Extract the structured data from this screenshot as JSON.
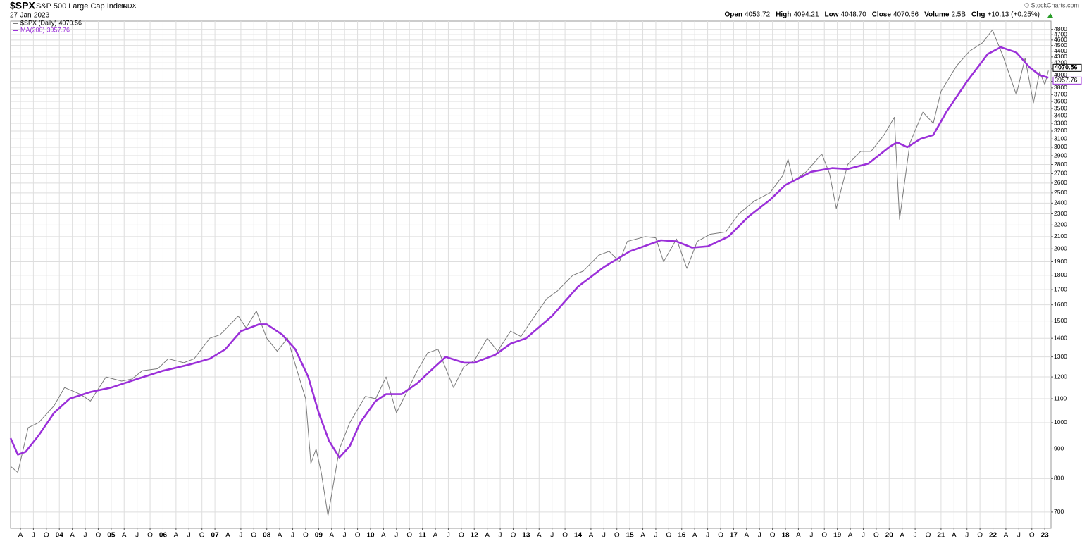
{
  "chart_data": {
    "type": "line",
    "symbol": "$SPX",
    "title": "S&P 500 Large Cap Index",
    "exchange": "INDX",
    "date": "27-Jan-2023",
    "quote": [
      {
        "label": "Open",
        "value": "4053.72"
      },
      {
        "label": "High",
        "value": "4094.21"
      },
      {
        "label": "Low",
        "value": "4048.70"
      },
      {
        "label": "Close",
        "value": "4070.56"
      },
      {
        "label": "Volume",
        "value": "2.5B"
      },
      {
        "label": "Chg",
        "value": "+10.13 (+0.25%)"
      }
    ],
    "watermark": "© StockCharts.com",
    "log_scale": true,
    "grid": true,
    "xlim": [
      2003.06,
      2023.12
    ],
    "ylim": [
      656,
      4960
    ],
    "xticks": [
      {
        "value": 2003.25,
        "label": "A"
      },
      {
        "value": 2003.5,
        "label": "J"
      },
      {
        "value": 2003.75,
        "label": "O"
      },
      {
        "value": 2004,
        "label": "04"
      },
      {
        "value": 2004.25,
        "label": "A"
      },
      {
        "value": 2004.5,
        "label": "J"
      },
      {
        "value": 2004.75,
        "label": "O"
      },
      {
        "value": 2005,
        "label": "05"
      },
      {
        "value": 2005.25,
        "label": "A"
      },
      {
        "value": 2005.5,
        "label": "J"
      },
      {
        "value": 2005.75,
        "label": "O"
      },
      {
        "value": 2006,
        "label": "06"
      },
      {
        "value": 2006.25,
        "label": "A"
      },
      {
        "value": 2006.5,
        "label": "J"
      },
      {
        "value": 2006.75,
        "label": "O"
      },
      {
        "value": 2007,
        "label": "07"
      },
      {
        "value": 2007.25,
        "label": "A"
      },
      {
        "value": 2007.5,
        "label": "J"
      },
      {
        "value": 2007.75,
        "label": "O"
      },
      {
        "value": 2008,
        "label": "08"
      },
      {
        "value": 2008.25,
        "label": "A"
      },
      {
        "value": 2008.5,
        "label": "J"
      },
      {
        "value": 2008.75,
        "label": "O"
      },
      {
        "value": 2009,
        "label": "09"
      },
      {
        "value": 2009.25,
        "label": "A"
      },
      {
        "value": 2009.5,
        "label": "J"
      },
      {
        "value": 2009.75,
        "label": "O"
      },
      {
        "value": 2010,
        "label": "10"
      },
      {
        "value": 2010.25,
        "label": "A"
      },
      {
        "value": 2010.5,
        "label": "J"
      },
      {
        "value": 2010.75,
        "label": "O"
      },
      {
        "value": 2011,
        "label": "11"
      },
      {
        "value": 2011.25,
        "label": "A"
      },
      {
        "value": 2011.5,
        "label": "J"
      },
      {
        "value": 2011.75,
        "label": "O"
      },
      {
        "value": 2012,
        "label": "12"
      },
      {
        "value": 2012.25,
        "label": "A"
      },
      {
        "value": 2012.5,
        "label": "J"
      },
      {
        "value": 2012.75,
        "label": "O"
      },
      {
        "value": 2013,
        "label": "13"
      },
      {
        "value": 2013.25,
        "label": "A"
      },
      {
        "value": 2013.5,
        "label": "J"
      },
      {
        "value": 2013.75,
        "label": "O"
      },
      {
        "value": 2014,
        "label": "14"
      },
      {
        "value": 2014.25,
        "label": "A"
      },
      {
        "value": 2014.5,
        "label": "J"
      },
      {
        "value": 2014.75,
        "label": "O"
      },
      {
        "value": 2015,
        "label": "15"
      },
      {
        "value": 2015.25,
        "label": "A"
      },
      {
        "value": 2015.5,
        "label": "J"
      },
      {
        "value": 2015.75,
        "label": "O"
      },
      {
        "value": 2016,
        "label": "16"
      },
      {
        "value": 2016.25,
        "label": "A"
      },
      {
        "value": 2016.5,
        "label": "J"
      },
      {
        "value": 2016.75,
        "label": "O"
      },
      {
        "value": 2017,
        "label": "17"
      },
      {
        "value": 2017.25,
        "label": "A"
      },
      {
        "value": 2017.5,
        "label": "J"
      },
      {
        "value": 2017.75,
        "label": "O"
      },
      {
        "value": 2018,
        "label": "18"
      },
      {
        "value": 2018.25,
        "label": "A"
      },
      {
        "value": 2018.5,
        "label": "J"
      },
      {
        "value": 2018.75,
        "label": "O"
      },
      {
        "value": 2019,
        "label": "19"
      },
      {
        "value": 2019.25,
        "label": "A"
      },
      {
        "value": 2019.5,
        "label": "J"
      },
      {
        "value": 2019.75,
        "label": "O"
      },
      {
        "value": 2020,
        "label": "20"
      },
      {
        "value": 2020.25,
        "label": "A"
      },
      {
        "value": 2020.5,
        "label": "J"
      },
      {
        "value": 2020.75,
        "label": "O"
      },
      {
        "value": 2021,
        "label": "21"
      },
      {
        "value": 2021.25,
        "label": "A"
      },
      {
        "value": 2021.5,
        "label": "J"
      },
      {
        "value": 2021.75,
        "label": "O"
      },
      {
        "value": 2022,
        "label": "22"
      },
      {
        "value": 2022.25,
        "label": "A"
      },
      {
        "value": 2022.5,
        "label": "J"
      },
      {
        "value": 2022.75,
        "label": "O"
      },
      {
        "value": 2023,
        "label": "23"
      }
    ],
    "yticks": [
      700,
      800,
      900,
      1000,
      1100,
      1200,
      1300,
      1400,
      1500,
      1600,
      1700,
      1800,
      1900,
      2000,
      2100,
      2200,
      2300,
      2400,
      2500,
      2600,
      2700,
      2800,
      2900,
      3000,
      3100,
      3200,
      3300,
      3400,
      3500,
      3600,
      3700,
      3800,
      3900,
      4000,
      4100,
      4200,
      4300,
      4400,
      4500,
      4600,
      4700,
      4800
    ],
    "series": [
      {
        "name": "$SPX (Daily)",
        "color": "#7a7a7a",
        "x": [
          2003.06,
          2003.2,
          2003.4,
          2003.6,
          2003.9,
          2004.1,
          2004.4,
          2004.6,
          2004.9,
          2005.2,
          2005.4,
          2005.6,
          2005.9,
          2006.1,
          2006.4,
          2006.6,
          2006.9,
          2007.1,
          2007.45,
          2007.6,
          2007.8,
          2008.0,
          2008.2,
          2008.4,
          2008.55,
          2008.75,
          2008.85,
          2008.95,
          2009.05,
          2009.18,
          2009.4,
          2009.6,
          2009.9,
          2010.1,
          2010.3,
          2010.5,
          2010.7,
          2010.9,
          2011.1,
          2011.3,
          2011.6,
          2011.8,
          2012.0,
          2012.25,
          2012.45,
          2012.7,
          2012.9,
          2013.1,
          2013.4,
          2013.6,
          2013.9,
          2014.1,
          2014.4,
          2014.6,
          2014.8,
          2014.95,
          2015.3,
          2015.5,
          2015.65,
          2015.9,
          2016.1,
          2016.3,
          2016.55,
          2016.85,
          2017.1,
          2017.4,
          2017.7,
          2017.95,
          2018.05,
          2018.15,
          2018.4,
          2018.7,
          2018.85,
          2018.98,
          2019.2,
          2019.45,
          2019.65,
          2019.9,
          2020.1,
          2020.2,
          2020.4,
          2020.65,
          2020.85,
          2021.0,
          2021.3,
          2021.55,
          2021.8,
          2021.99,
          2022.2,
          2022.45,
          2022.62,
          2022.78,
          2022.9,
          2023.0,
          2023.07
        ],
        "values": [
          840,
          820,
          980,
          1000,
          1070,
          1150,
          1120,
          1090,
          1200,
          1180,
          1190,
          1230,
          1240,
          1290,
          1270,
          1290,
          1400,
          1420,
          1530,
          1460,
          1560,
          1400,
          1330,
          1400,
          1260,
          1100,
          850,
          900,
          820,
          690,
          900,
          1000,
          1110,
          1100,
          1200,
          1040,
          1130,
          1230,
          1320,
          1340,
          1150,
          1250,
          1280,
          1400,
          1330,
          1440,
          1410,
          1500,
          1640,
          1690,
          1800,
          1830,
          1950,
          1980,
          1900,
          2060,
          2100,
          2090,
          1900,
          2080,
          1850,
          2060,
          2120,
          2140,
          2300,
          2420,
          2500,
          2680,
          2860,
          2620,
          2720,
          2920,
          2700,
          2350,
          2800,
          2950,
          2950,
          3150,
          3380,
          2250,
          3050,
          3450,
          3300,
          3750,
          4150,
          4400,
          4550,
          4790,
          4300,
          3700,
          4280,
          3580,
          4050,
          3850,
          4070.56
        ]
      },
      {
        "name": "MA(200)",
        "color": "#9b30d9",
        "x": [
          2003.06,
          2003.2,
          2003.35,
          2003.6,
          2003.9,
          2004.2,
          2004.6,
          2005.0,
          2005.5,
          2006.0,
          2006.5,
          2006.9,
          2007.2,
          2007.5,
          2007.85,
          2008.0,
          2008.3,
          2008.55,
          2008.8,
          2009.0,
          2009.2,
          2009.4,
          2009.6,
          2009.8,
          2010.1,
          2010.3,
          2010.6,
          2010.9,
          2011.2,
          2011.45,
          2011.8,
          2012.0,
          2012.4,
          2012.7,
          2013.0,
          2013.5,
          2014.0,
          2014.5,
          2015.0,
          2015.6,
          2015.9,
          2016.2,
          2016.5,
          2016.9,
          2017.3,
          2017.7,
          2018.0,
          2018.5,
          2018.9,
          2019.2,
          2019.6,
          2020.0,
          2020.15,
          2020.35,
          2020.6,
          2020.85,
          2021.1,
          2021.5,
          2021.9,
          2022.15,
          2022.45,
          2022.7,
          2022.9,
          2023.07
        ],
        "values": [
          940,
          880,
          890,
          950,
          1040,
          1100,
          1130,
          1150,
          1190,
          1230,
          1260,
          1290,
          1340,
          1440,
          1480,
          1480,
          1420,
          1340,
          1200,
          1040,
          930,
          870,
          910,
          1000,
          1090,
          1120,
          1120,
          1170,
          1240,
          1300,
          1270,
          1270,
          1310,
          1370,
          1400,
          1530,
          1720,
          1860,
          1980,
          2070,
          2060,
          2010,
          2020,
          2100,
          2280,
          2430,
          2580,
          2720,
          2760,
          2750,
          2810,
          3000,
          3060,
          3000,
          3100,
          3150,
          3450,
          3900,
          4350,
          4470,
          4380,
          4130,
          4000,
          3957.76
        ]
      }
    ]
  }
}
